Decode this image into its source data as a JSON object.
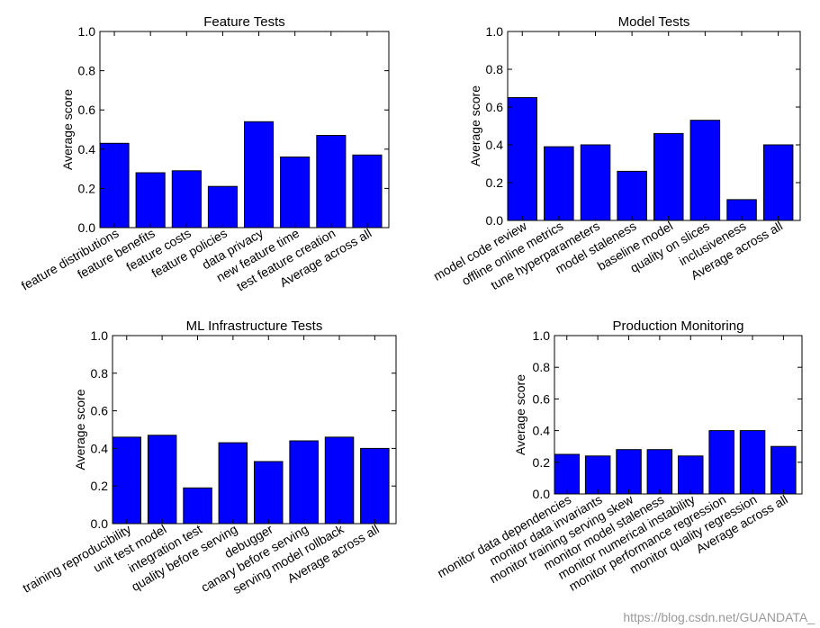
{
  "chart_data": [
    {
      "type": "bar",
      "title": "Feature Tests",
      "xlabel": "",
      "ylabel": "Average score",
      "ylim": [
        0,
        1.0
      ],
      "yticks": [
        "0.0",
        "0.2",
        "0.4",
        "0.6",
        "0.8",
        "1.0"
      ],
      "bar_color": "#0000ff",
      "categories": [
        "feature distributions",
        "feature benefits",
        "feature costs",
        "feature policies",
        "data privacy",
        "new feature time",
        "test feature creation",
        "Average across all"
      ],
      "values": [
        0.43,
        0.28,
        0.29,
        0.21,
        0.54,
        0.36,
        0.47,
        0.37
      ]
    },
    {
      "type": "bar",
      "title": "Model Tests",
      "xlabel": "",
      "ylabel": "Average score",
      "ylim": [
        0,
        1.0
      ],
      "yticks": [
        "0.0",
        "0.2",
        "0.4",
        "0.6",
        "0.8",
        "1.0"
      ],
      "bar_color": "#0000ff",
      "categories": [
        "model code review",
        "offline online metrics",
        "tune hyperparameters",
        "model staleness",
        "baseline model",
        "quality on slices",
        "inclusiveness",
        "Average across all"
      ],
      "values": [
        0.65,
        0.39,
        0.4,
        0.26,
        0.46,
        0.53,
        0.11,
        0.4
      ]
    },
    {
      "type": "bar",
      "title": "ML Infrastructure Tests",
      "xlabel": "",
      "ylabel": "Average score",
      "ylim": [
        0,
        1.0
      ],
      "yticks": [
        "0.0",
        "0.2",
        "0.4",
        "0.6",
        "0.8",
        "1.0"
      ],
      "bar_color": "#0000ff",
      "categories": [
        "training reproducibility",
        "unit test model",
        "integration test",
        "quality before serving",
        "debugger",
        "canary before serving",
        "serving model rollback",
        "Average across all"
      ],
      "values": [
        0.46,
        0.47,
        0.19,
        0.43,
        0.33,
        0.44,
        0.46,
        0.4
      ]
    },
    {
      "type": "bar",
      "title": "Production Monitoring",
      "xlabel": "",
      "ylabel": "Average score",
      "ylim": [
        0,
        1.0
      ],
      "yticks": [
        "0.0",
        "0.2",
        "0.4",
        "0.6",
        "0.8",
        "1.0"
      ],
      "bar_color": "#0000ff",
      "categories": [
        "monitor data dependencies",
        "monitor data invariants",
        "monitor training serving skew",
        "monitor model staleness",
        "monitor numerical instability",
        "monitor performance regression",
        "monitor quality regression",
        "Average across all"
      ],
      "values": [
        0.25,
        0.24,
        0.28,
        0.28,
        0.24,
        0.4,
        0.4,
        0.3
      ]
    }
  ],
  "watermark": "https://blog.csdn.net/GUANDATA_"
}
